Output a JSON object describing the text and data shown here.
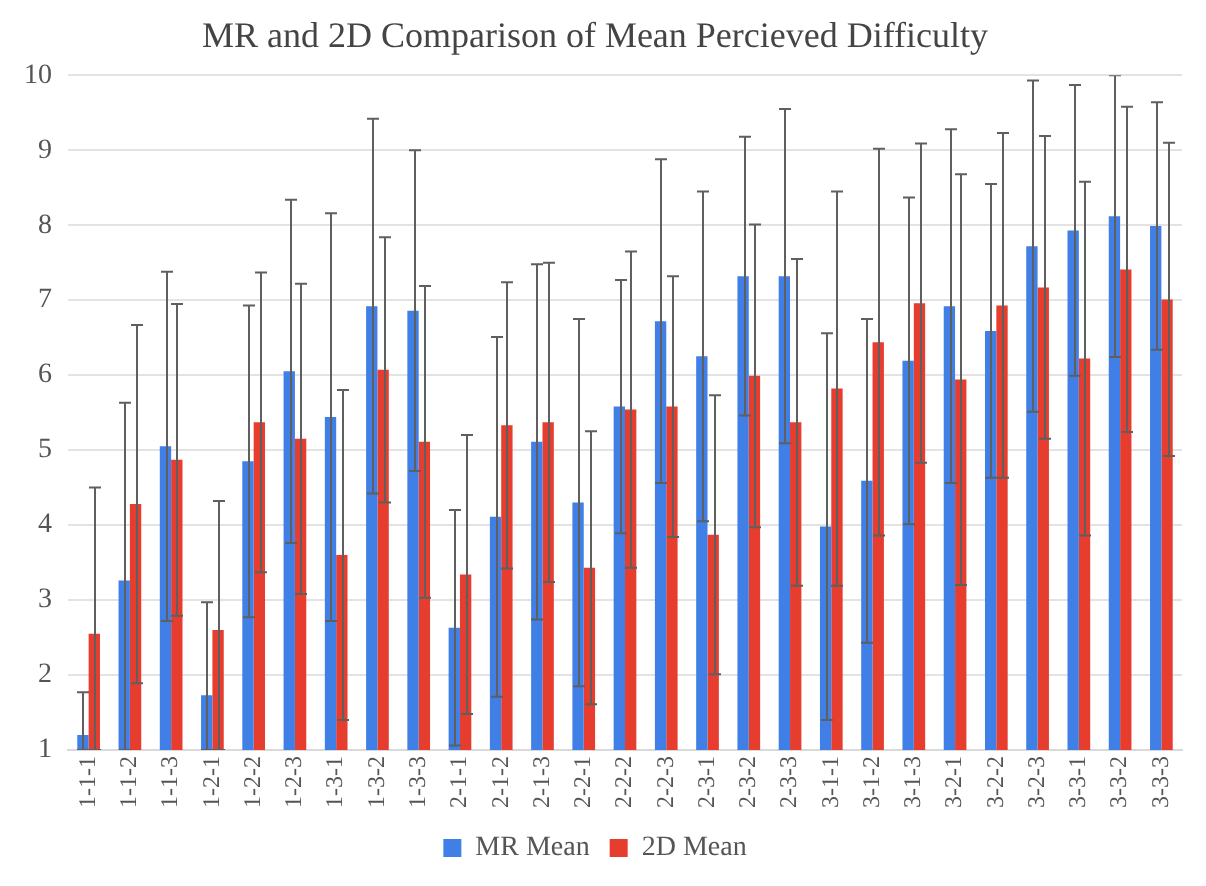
{
  "chart_data": {
    "type": "bar",
    "title": "MR and 2D Comparison of Mean Percieved Difficulty",
    "categories": [
      "1-1-1",
      "1-1-2",
      "1-1-3",
      "1-2-1",
      "1-2-2",
      "1-2-3",
      "1-3-1",
      "1-3-2",
      "1-3-3",
      "2-1-1",
      "2-1-2",
      "2-1-3",
      "2-2-1",
      "2-2-2",
      "2-2-3",
      "2-3-1",
      "2-3-2",
      "2-3-3",
      "3-1-1",
      "3-1-2",
      "3-1-3",
      "3-2-1",
      "3-2-2",
      "3-2-3",
      "3-3-1",
      "3-3-2",
      "3-3-3"
    ],
    "series": [
      {
        "name": "MR Mean",
        "color": "#3f7fe6",
        "values": [
          1.2,
          3.26,
          5.05,
          1.73,
          4.85,
          6.05,
          5.44,
          6.92,
          6.86,
          2.63,
          4.11,
          5.11,
          4.3,
          5.58,
          6.72,
          6.25,
          7.32,
          7.32,
          3.98,
          4.59,
          6.19,
          6.92,
          6.59,
          7.72,
          7.93,
          8.12,
          7.99
        ],
        "errors": [
          [
            1,
            1.77
          ],
          [
            1,
            5.63
          ],
          2.33,
          [
            1,
            2.97
          ],
          2.08,
          2.29,
          2.72,
          2.5,
          2.14,
          1.57,
          2.4,
          2.37,
          2.45,
          1.69,
          2.16,
          2.2,
          1.86,
          2.23,
          2.58,
          2.16,
          2.18,
          2.36,
          1.96,
          2.21,
          1.94,
          1.88,
          1.65
        ]
      },
      {
        "name": "2D Mean",
        "color": "#e63d2f",
        "values": [
          2.55,
          4.28,
          4.87,
          2.6,
          5.37,
          5.15,
          3.6,
          6.07,
          5.11,
          3.34,
          5.33,
          5.37,
          3.43,
          5.54,
          5.58,
          3.87,
          5.99,
          5.37,
          5.82,
          6.44,
          6.96,
          5.94,
          6.93,
          7.17,
          6.22,
          7.41,
          7.01
        ],
        "errors": [
          [
            1,
            4.5
          ],
          2.39,
          2.08,
          [
            1,
            4.32
          ],
          2.0,
          2.07,
          2.2,
          1.77,
          2.08,
          1.86,
          1.91,
          2.13,
          1.82,
          2.11,
          1.74,
          1.86,
          2.02,
          2.18,
          2.63,
          2.58,
          2.13,
          2.74,
          2.3,
          2.02,
          2.36,
          2.17,
          2.09
        ]
      }
    ],
    "ylim": [
      1,
      10
    ],
    "yticks": [
      1,
      2,
      3,
      4,
      5,
      6,
      7,
      8,
      9,
      10
    ],
    "grid": "y",
    "legend": "bottom"
  }
}
